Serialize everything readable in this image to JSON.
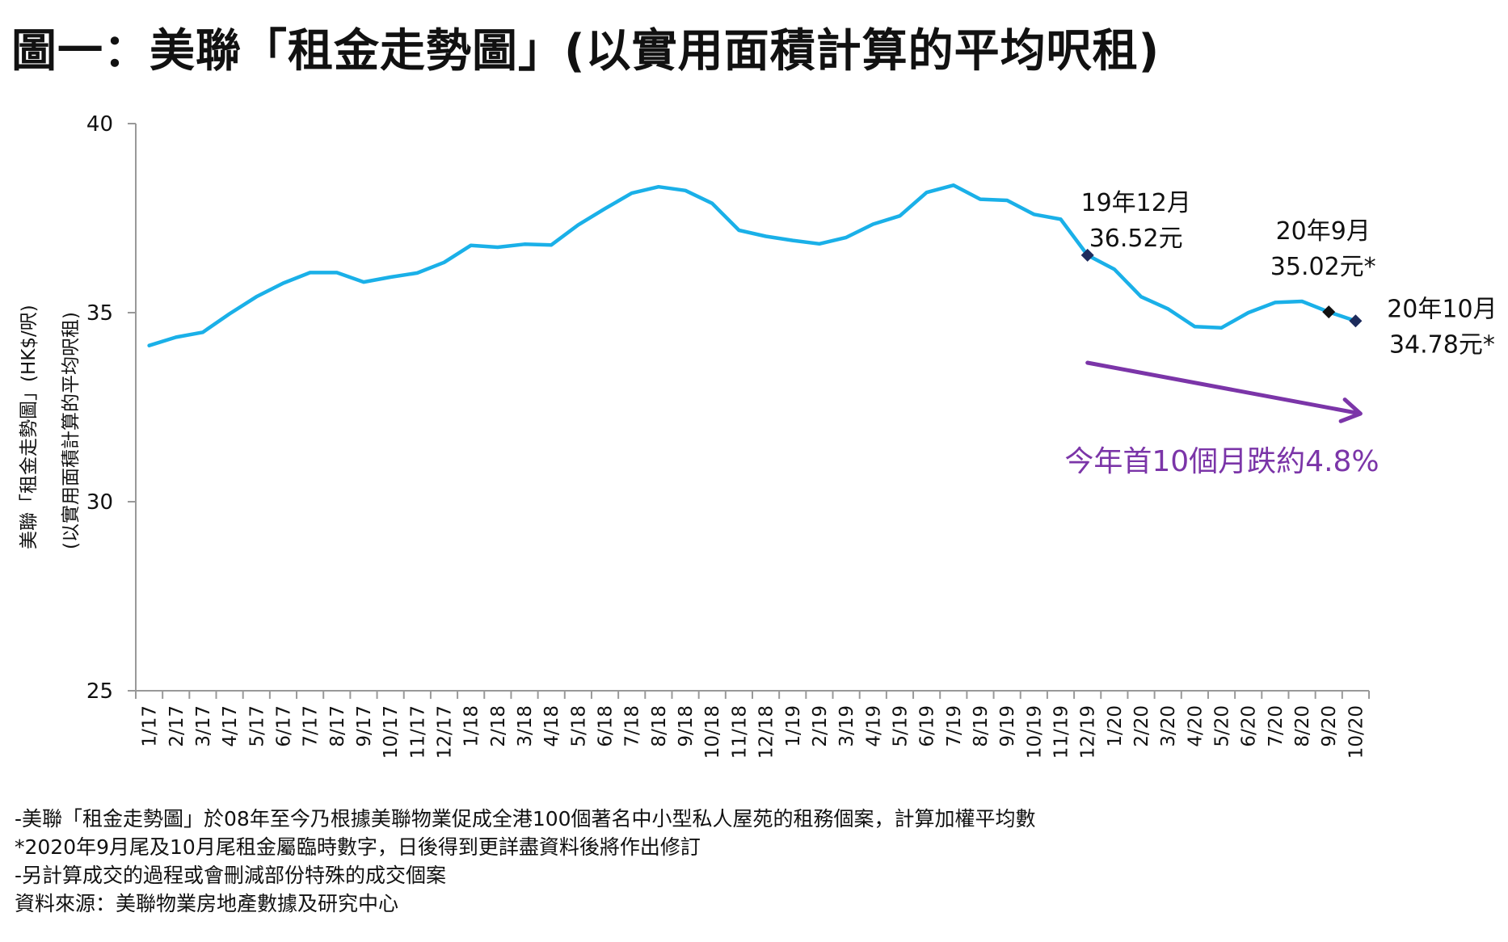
{
  "title": "圖一：美聯「租金走勢圖」(以實用面積計算的平均呎租)",
  "colors": {
    "line": "#1ab0e8",
    "marker": "#1d2b5c",
    "marker_alt": "#111111",
    "trend": "#7b35a8",
    "axis": "#999999"
  },
  "chart_data": {
    "type": "line",
    "title": "美聯「租金走勢圖」(以實用面積計算的平均呎租)",
    "ylabel": [
      "美聯「租金走勢圖」(HK$/呎)",
      "(以實用面積計算的平均呎租)"
    ],
    "xlabel": "",
    "ylim": [
      25,
      40
    ],
    "yticks": [
      25,
      30,
      35,
      40
    ],
    "categories": [
      "1/17",
      "2/17",
      "3/17",
      "4/17",
      "5/17",
      "6/17",
      "7/17",
      "8/17",
      "9/17",
      "10/17",
      "11/17",
      "12/17",
      "1/18",
      "2/18",
      "3/18",
      "4/18",
      "5/18",
      "6/18",
      "7/18",
      "8/18",
      "9/18",
      "10/18",
      "11/18",
      "12/18",
      "1/19",
      "2/19",
      "3/19",
      "4/19",
      "5/19",
      "6/19",
      "7/19",
      "8/19",
      "9/19",
      "10/19",
      "11/19",
      "12/19",
      "1/20",
      "2/20",
      "3/20",
      "4/20",
      "5/20",
      "6/20",
      "7/20",
      "8/20",
      "9/20",
      "10/20"
    ],
    "series": [
      {
        "name": "平均呎租",
        "values": [
          34.13,
          34.35,
          34.48,
          34.97,
          35.42,
          35.78,
          36.06,
          36.06,
          35.81,
          35.94,
          36.05,
          36.33,
          36.78,
          36.73,
          36.81,
          36.79,
          37.32,
          37.75,
          38.16,
          38.33,
          38.23,
          37.89,
          37.18,
          37.02,
          36.91,
          36.82,
          36.99,
          37.34,
          37.56,
          38.18,
          38.37,
          38.0,
          37.97,
          37.6,
          37.47,
          36.52,
          36.15,
          35.42,
          35.1,
          34.63,
          34.6,
          35.0,
          35.27,
          35.3,
          35.02,
          34.78
        ]
      }
    ],
    "markers": [
      {
        "index": 35,
        "lines": [
          "19年12月",
          "36.52元"
        ]
      },
      {
        "index": 44,
        "lines": [
          "20年9月",
          "35.02元*"
        ]
      },
      {
        "index": 45,
        "lines": [
          "20年10月",
          "34.78元*"
        ]
      }
    ],
    "trend_annotation": {
      "text": "今年首10個月跌約4.8%",
      "from_index": 35,
      "to_index": 45
    }
  },
  "notes": [
    "-美聯「租金走勢圖」於08年至今乃根據美聯物業促成全港100個著名中小型私人屋苑的租務個案，計算加權平均數",
    "*2020年9月尾及10月尾租金屬臨時數字，日後得到更詳盡資料後將作出修訂",
    "-另計算成交的過程或會刪減部份特殊的成交個案",
    "資料來源：美聯物業房地產數據及研究中心"
  ]
}
